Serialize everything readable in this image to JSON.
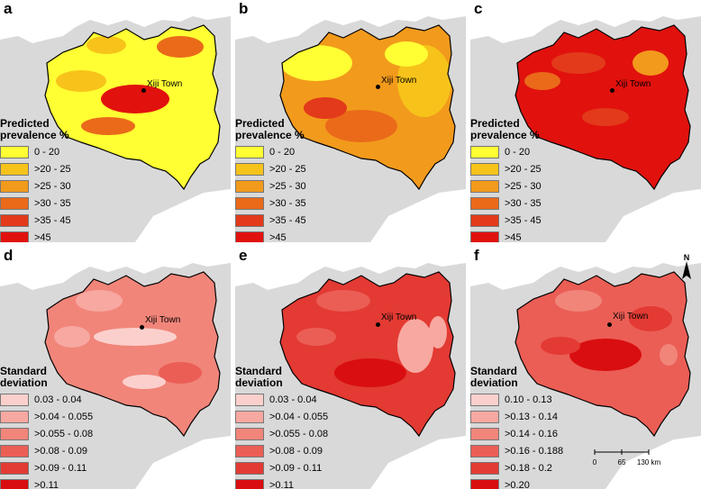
{
  "town_label": "Xiji Town",
  "prevalence_legend": {
    "title_line1": "Predicted",
    "title_line2": "prevalence %",
    "classes": [
      {
        "label": "0 - 20",
        "color": "#ffff33"
      },
      {
        "label": ">20 - 25",
        "color": "#f7c31a"
      },
      {
        "label": ">25 - 30",
        "color": "#f29a1c"
      },
      {
        "label": ">30 - 35",
        "color": "#ea6a1a"
      },
      {
        "label": ">35 - 45",
        "color": "#e23a1a"
      },
      {
        "label": ">45",
        "color": "#e1110e"
      }
    ]
  },
  "sd_legend_de": {
    "title_line1": "Standard",
    "title_line2": "deviation",
    "classes": [
      {
        "label": "0.03 - 0.04",
        "color": "#fbd0cc"
      },
      {
        "label": ">0.04 - 0.055",
        "color": "#f7a8a0"
      },
      {
        "label": ">0.055 - 0.08",
        "color": "#f1857a"
      },
      {
        "label": ">0.08 - 0.09",
        "color": "#eb5e55"
      },
      {
        "label": ">0.09 - 0.11",
        "color": "#e33a33"
      },
      {
        "label": ">0.11",
        "color": "#d90e10"
      }
    ]
  },
  "sd_legend_f": {
    "title_line1": "Standard",
    "title_line2": "deviation",
    "classes": [
      {
        "label": "0.10 - 0.13",
        "color": "#fbd0cc"
      },
      {
        "label": ">0.13 - 0.14",
        "color": "#f7a8a0"
      },
      {
        "label": ">0.14 - 0.16",
        "color": "#f1857a"
      },
      {
        "label": ">0.16 - 0.188",
        "color": "#eb5e55"
      },
      {
        "label": ">0.18 - 0.2",
        "color": "#e33a33"
      },
      {
        "label": ">0.20",
        "color": "#d90e10"
      }
    ]
  },
  "panels": [
    {
      "letter": "a",
      "legend": "prevalence_legend",
      "base": "#ffff33",
      "patches": [
        "#f7c31a",
        "#ea6a1a",
        "#e1110e"
      ]
    },
    {
      "letter": "b",
      "legend": "prevalence_legend",
      "base": "#f29a1c",
      "patches": [
        "#ffff33",
        "#f7c31a",
        "#ea6a1a",
        "#e23a1a"
      ]
    },
    {
      "letter": "c",
      "legend": "prevalence_legend",
      "base": "#e1110e",
      "patches": [
        "#e23a1a",
        "#ea6a1a",
        "#f29a1c"
      ]
    },
    {
      "letter": "d",
      "legend": "sd_legend_de",
      "base": "#f1857a",
      "patches": [
        "#f7a8a0",
        "#fbd0cc",
        "#eb5e55"
      ]
    },
    {
      "letter": "e",
      "legend": "sd_legend_de",
      "base": "#e33a33",
      "patches": [
        "#eb5e55",
        "#f7a8a0",
        "#d90e10"
      ]
    },
    {
      "letter": "f",
      "legend": "sd_legend_f",
      "base": "#eb5e55",
      "patches": [
        "#f1857a",
        "#e33a33",
        "#d90e10"
      ]
    }
  ],
  "scale_bar": {
    "ticks": [
      "0",
      "65",
      "130 km"
    ]
  },
  "north_arrow": {
    "label": "N"
  },
  "colors": {
    "land_background": "#d9d9d9",
    "outline": "#000000"
  }
}
